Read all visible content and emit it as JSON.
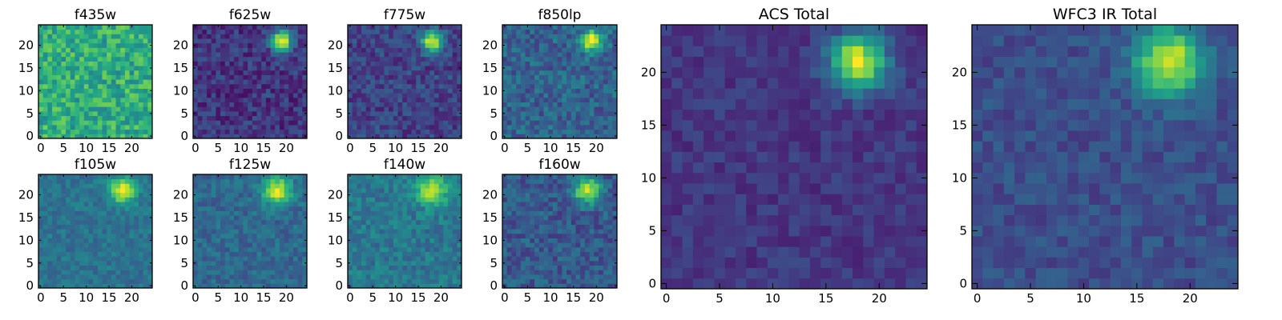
{
  "chart_data": [
    {
      "type": "heatmap",
      "title": "f435w",
      "grid": false,
      "xlim": [
        0,
        24
      ],
      "ylim": [
        0,
        24
      ],
      "xticks": [
        0,
        5,
        10,
        15,
        20
      ],
      "yticks": [
        0,
        5,
        10,
        15,
        20
      ],
      "xtick_labels": [
        "0",
        "5",
        "10",
        "15",
        "20"
      ],
      "ytick_labels": [
        "0",
        "5",
        "10",
        "15",
        "20"
      ],
      "colormap": "viridis",
      "source_peak": null,
      "noise": 0.17,
      "base": 0.62
    },
    {
      "type": "heatmap",
      "title": "f625w",
      "grid": false,
      "xlim": [
        0,
        24
      ],
      "ylim": [
        0,
        24
      ],
      "xticks": [
        0,
        5,
        10,
        15,
        20
      ],
      "yticks": [
        0,
        5,
        10,
        15,
        20
      ],
      "xtick_labels": [
        "0",
        "5",
        "10",
        "15",
        "20"
      ],
      "ytick_labels": [
        "0",
        "5",
        "10",
        "15",
        "20"
      ],
      "colormap": "viridis",
      "source_peak": {
        "x": 19,
        "y": 21,
        "intensity": 0.8,
        "width": 1.6
      },
      "noise": 0.12,
      "base": 0.16
    },
    {
      "type": "heatmap",
      "title": "f775w",
      "grid": false,
      "xlim": [
        0,
        24
      ],
      "ylim": [
        0,
        24
      ],
      "xticks": [
        0,
        5,
        10,
        15,
        20
      ],
      "yticks": [
        0,
        5,
        10,
        15,
        20
      ],
      "xtick_labels": [
        "0",
        "5",
        "10",
        "15",
        "20"
      ],
      "ytick_labels": [
        "0",
        "5",
        "10",
        "15",
        "20"
      ],
      "colormap": "viridis",
      "source_peak": {
        "x": 18,
        "y": 21,
        "intensity": 0.8,
        "width": 1.6
      },
      "noise": 0.12,
      "base": 0.2
    },
    {
      "type": "heatmap",
      "title": "f850lp",
      "grid": false,
      "xlim": [
        0,
        24
      ],
      "ylim": [
        0,
        24
      ],
      "xticks": [
        0,
        5,
        10,
        15,
        20
      ],
      "yticks": [
        0,
        5,
        10,
        15,
        20
      ],
      "xtick_labels": [
        "0",
        "5",
        "10",
        "15",
        "20"
      ],
      "ytick_labels": [
        "0",
        "5",
        "10",
        "15",
        "20"
      ],
      "colormap": "viridis",
      "source_peak": {
        "x": 19,
        "y": 21,
        "intensity": 0.7,
        "width": 1.6
      },
      "noise": 0.14,
      "base": 0.32
    },
    {
      "type": "heatmap",
      "title": "f105w",
      "grid": false,
      "xlim": [
        0,
        24
      ],
      "ylim": [
        0,
        24
      ],
      "xticks": [
        0,
        5,
        10,
        15,
        20
      ],
      "yticks": [
        0,
        5,
        10,
        15,
        20
      ],
      "xtick_labels": [
        "0",
        "5",
        "10",
        "15",
        "20"
      ],
      "ytick_labels": [
        "0",
        "5",
        "10",
        "15",
        "20"
      ],
      "colormap": "viridis",
      "source_peak": {
        "x": 18,
        "y": 21,
        "intensity": 0.6,
        "width": 2.0
      },
      "noise": 0.09,
      "base": 0.38
    },
    {
      "type": "heatmap",
      "title": "f125w",
      "grid": false,
      "xlim": [
        0,
        24
      ],
      "ylim": [
        0,
        24
      ],
      "xticks": [
        0,
        5,
        10,
        15,
        20
      ],
      "yticks": [
        0,
        5,
        10,
        15,
        20
      ],
      "xtick_labels": [
        "0",
        "5",
        "10",
        "15",
        "20"
      ],
      "ytick_labels": [
        "0",
        "5",
        "10",
        "15",
        "20"
      ],
      "colormap": "viridis",
      "source_peak": {
        "x": 18,
        "y": 21,
        "intensity": 0.6,
        "width": 2.2
      },
      "noise": 0.1,
      "base": 0.34
    },
    {
      "type": "heatmap",
      "title": "f140w",
      "grid": false,
      "xlim": [
        0,
        24
      ],
      "ylim": [
        0,
        24
      ],
      "xticks": [
        0,
        5,
        10,
        15,
        20
      ],
      "yticks": [
        0,
        5,
        10,
        15,
        20
      ],
      "xtick_labels": [
        "0",
        "5",
        "10",
        "15",
        "20"
      ],
      "ytick_labels": [
        "0",
        "5",
        "10",
        "15",
        "20"
      ],
      "colormap": "viridis",
      "source_peak": {
        "x": 18,
        "y": 21,
        "intensity": 0.55,
        "width": 2.2
      },
      "noise": 0.11,
      "base": 0.4
    },
    {
      "type": "heatmap",
      "title": "f160w",
      "grid": false,
      "xlim": [
        0,
        24
      ],
      "ylim": [
        0,
        24
      ],
      "xticks": [
        0,
        5,
        10,
        15,
        20
      ],
      "yticks": [
        0,
        5,
        10,
        15,
        20
      ],
      "xtick_labels": [
        "0",
        "5",
        "10",
        "15",
        "20"
      ],
      "ytick_labels": [
        "0",
        "5",
        "10",
        "15",
        "20"
      ],
      "colormap": "viridis",
      "source_peak": {
        "x": 18,
        "y": 21,
        "intensity": 0.65,
        "width": 2.0
      },
      "noise": 0.12,
      "base": 0.28
    },
    {
      "type": "heatmap",
      "title": "ACS Total",
      "grid": false,
      "xlim": [
        0,
        24
      ],
      "ylim": [
        0,
        24
      ],
      "xticks": [
        0,
        5,
        10,
        15,
        20
      ],
      "yticks": [
        0,
        5,
        10,
        15,
        20
      ],
      "xtick_labels": [
        "0",
        "5",
        "10",
        "15",
        "20"
      ],
      "ytick_labels": [
        "0",
        "5",
        "10",
        "15",
        "20"
      ],
      "colormap": "viridis",
      "source_peak": {
        "x": 18,
        "y": 21,
        "intensity": 0.8,
        "width": 1.8
      },
      "noise": 0.07,
      "base": 0.16
    },
    {
      "type": "heatmap",
      "title": "WFC3 IR Total",
      "grid": false,
      "xlim": [
        0,
        24
      ],
      "ylim": [
        0,
        24
      ],
      "xticks": [
        0,
        5,
        10,
        15,
        20
      ],
      "yticks": [
        0,
        5,
        10,
        15,
        20
      ],
      "xtick_labels": [
        "0",
        "5",
        "10",
        "15",
        "20"
      ],
      "ytick_labels": [
        "0",
        "5",
        "10",
        "15",
        "20"
      ],
      "colormap": "viridis",
      "source_peak": {
        "x": 18,
        "y": 21,
        "intensity": 0.72,
        "width": 2.2
      },
      "noise": 0.08,
      "base": 0.24
    }
  ]
}
